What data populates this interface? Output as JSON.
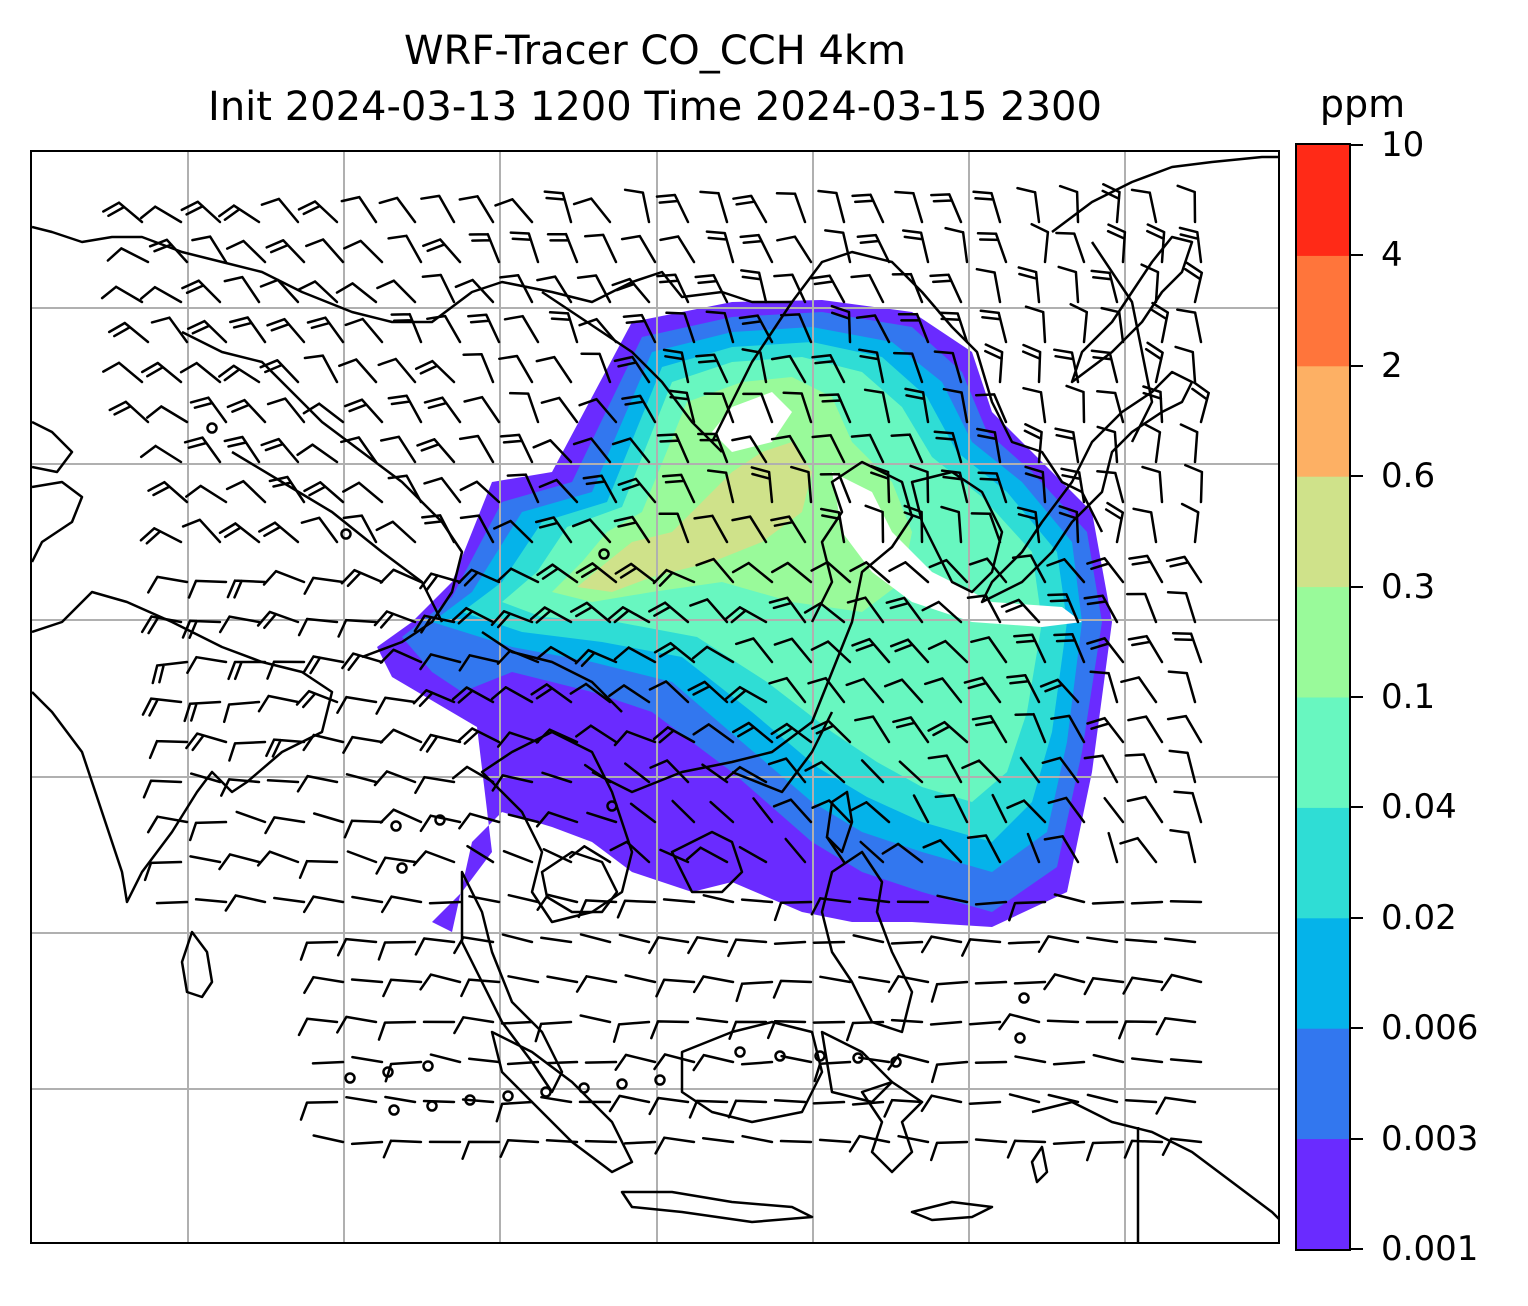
{
  "title": {
    "line1": "WRF-Tracer CO_CCH 4km",
    "line2": "Init 2024-03-13 1200 Time 2024-03-15 2300"
  },
  "colorbar": {
    "unit": "ppm",
    "levels": [
      "0.001",
      "0.003",
      "0.006",
      "0.02",
      "0.04",
      "0.1",
      "0.3",
      "0.6",
      "2",
      "4",
      "10"
    ],
    "colors": [
      "#6a2bff",
      "#3277ef",
      "#05b3ea",
      "#2fddd5",
      "#68f7c0",
      "#99fa9a",
      "#cfe28a",
      "#fdb064",
      "#ff753b",
      "#ff2a17"
    ]
  },
  "map": {
    "gridlines": true,
    "wind_barbs": true,
    "coastlines": true,
    "land_color": "#ffffff",
    "grid_color": "#b0b0b0"
  }
}
